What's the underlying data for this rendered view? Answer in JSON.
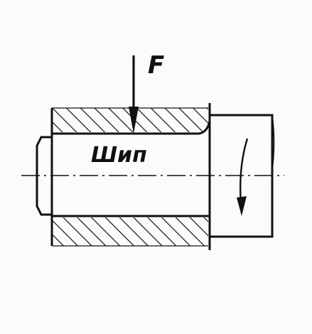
{
  "labels": {
    "force": "F",
    "part": "Шип"
  },
  "colors": {
    "ink": "#111111",
    "paper": "#fbfbfb"
  }
}
